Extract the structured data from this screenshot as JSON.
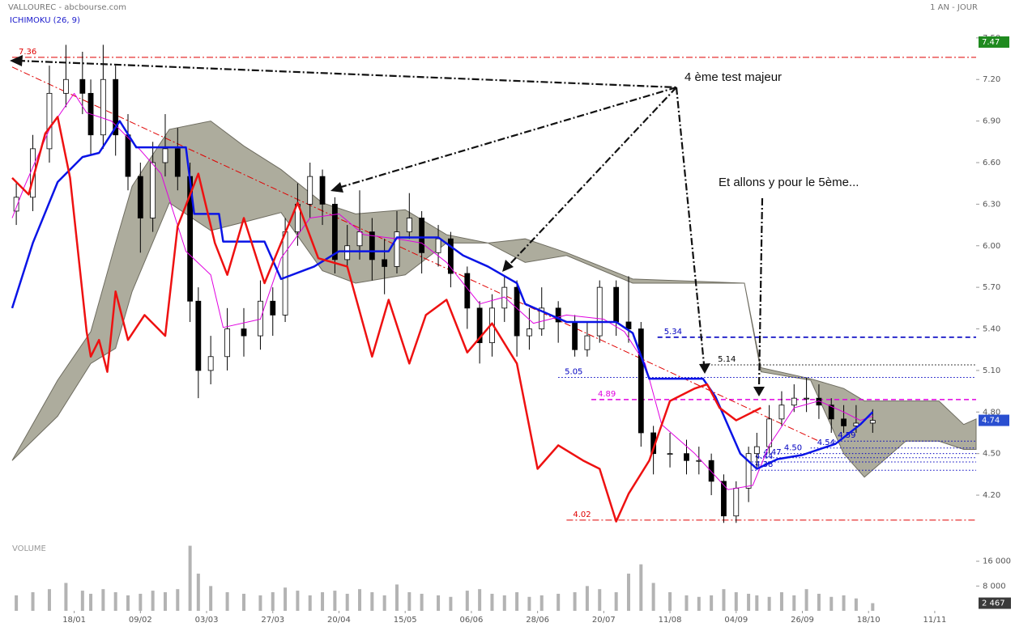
{
  "chart_data": [
    {
      "type": "candlestick",
      "title": "VALLOUREC - abcbourse.com",
      "subtitle": "1 AN - JOUR",
      "indicator": "ICHIMOKU (26, 9)",
      "annotations": [
        "4 ème test majeur",
        "Et allons y pour le 5ème..."
      ],
      "xlim": [
        -15,
        218
      ],
      "ylim": [
        3.92,
        7.54
      ],
      "yticks": [
        {
          "value": 7.5,
          "label": "7.50"
        },
        {
          "value": 7.2,
          "label": "7.20"
        },
        {
          "value": 6.9,
          "label": "6.90"
        },
        {
          "value": 6.6,
          "label": "6.60"
        },
        {
          "value": 6.3,
          "label": "6.30"
        },
        {
          "value": 6.0,
          "label": "6.00"
        },
        {
          "value": 5.7,
          "label": "5.70"
        },
        {
          "value": 5.4,
          "label": "5.40"
        },
        {
          "value": 5.1,
          "label": "5.10"
        },
        {
          "value": 4.8,
          "label": "4.80"
        },
        {
          "value": 4.5,
          "label": "4.50"
        },
        {
          "value": 4.2,
          "label": "4.20"
        }
      ],
      "x": [
        -14,
        -10,
        -6,
        -2,
        2,
        4,
        7,
        10,
        13,
        16,
        19,
        22,
        25,
        28,
        30,
        33,
        37,
        41,
        45,
        48,
        51,
        54,
        57,
        60,
        63,
        66,
        69,
        72,
        75,
        78,
        81,
        84,
        88,
        91,
        95,
        98,
        101,
        104,
        107,
        110,
        113,
        117,
        121,
        124,
        127,
        131,
        134,
        137,
        140,
        144,
        148,
        151,
        154,
        157,
        160,
        163,
        165,
        168,
        171,
        174,
        177,
        180,
        183,
        186,
        189,
        193
      ],
      "open": [
        6.25,
        6.35,
        6.7,
        7.1,
        7.2,
        7.1,
        6.8,
        7.2,
        6.8,
        6.5,
        6.2,
        6.6,
        6.7,
        6.5,
        5.6,
        5.1,
        5.2,
        5.4,
        5.35,
        5.6,
        5.5,
        6.1,
        6.3,
        6.5,
        6.3,
        5.9,
        6.0,
        6.1,
        5.9,
        5.85,
        6.1,
        6.2,
        5.95,
        6.05,
        5.8,
        5.55,
        5.3,
        5.55,
        5.7,
        5.35,
        5.4,
        5.55,
        5.45,
        5.25,
        5.35,
        5.7,
        5.45,
        5.4,
        4.65,
        4.5,
        4.5,
        4.45,
        4.45,
        4.3,
        4.05,
        4.25,
        4.5,
        4.55,
        4.75,
        4.85,
        4.9,
        4.9,
        4.85,
        4.75,
        4.7,
        4.72
      ],
      "high": [
        6.45,
        6.8,
        7.3,
        7.45,
        7.4,
        7.2,
        7.45,
        7.3,
        6.95,
        6.6,
        6.75,
        6.95,
        6.85,
        6.6,
        5.7,
        5.35,
        5.55,
        5.55,
        5.75,
        5.7,
        6.2,
        6.45,
        6.6,
        6.55,
        6.35,
        6.15,
        6.4,
        6.2,
        6.05,
        6.25,
        6.38,
        6.25,
        6.15,
        6.1,
        5.85,
        5.6,
        5.65,
        5.78,
        5.75,
        5.55,
        5.7,
        5.6,
        5.5,
        5.45,
        5.75,
        5.75,
        5.78,
        5.45,
        4.7,
        4.65,
        4.6,
        4.55,
        4.5,
        4.35,
        4.3,
        4.55,
        4.65,
        4.85,
        4.95,
        5.0,
        5.05,
        5.0,
        4.9,
        4.85,
        4.85,
        4.82
      ],
      "low": [
        6.15,
        6.25,
        6.6,
        7.0,
        6.95,
        6.65,
        6.7,
        6.65,
        6.4,
        5.95,
        6.1,
        6.5,
        6.4,
        5.45,
        4.9,
        5.0,
        5.1,
        5.2,
        5.25,
        5.35,
        5.45,
        6.0,
        6.2,
        6.15,
        5.8,
        5.85,
        5.9,
        5.75,
        5.65,
        5.8,
        6.05,
        5.8,
        5.85,
        5.7,
        5.4,
        5.15,
        5.2,
        5.45,
        5.2,
        5.25,
        5.35,
        5.3,
        5.2,
        5.2,
        5.3,
        5.35,
        5.3,
        4.55,
        4.35,
        4.4,
        4.35,
        4.35,
        4.2,
        4.0,
        4.0,
        4.15,
        4.4,
        4.5,
        4.7,
        4.8,
        4.8,
        4.75,
        4.65,
        4.65,
        4.65,
        4.65
      ],
      "close": [
        6.35,
        6.7,
        7.1,
        7.2,
        7.1,
        6.8,
        7.2,
        6.8,
        6.5,
        6.2,
        6.6,
        6.7,
        6.5,
        5.6,
        5.1,
        5.2,
        5.4,
        5.35,
        5.6,
        5.5,
        6.1,
        6.3,
        6.5,
        6.3,
        5.9,
        6.0,
        6.1,
        5.9,
        5.85,
        6.1,
        6.2,
        5.95,
        6.05,
        5.8,
        5.55,
        5.3,
        5.55,
        5.7,
        5.35,
        5.4,
        5.55,
        5.45,
        5.25,
        5.35,
        5.7,
        5.45,
        5.4,
        4.65,
        4.5,
        4.5,
        4.45,
        4.45,
        4.3,
        4.05,
        4.25,
        4.5,
        4.55,
        4.75,
        4.85,
        4.9,
        4.9,
        4.85,
        4.75,
        4.7,
        4.72,
        4.74
      ],
      "up_color": "#ffffff",
      "down_color": "#000000",
      "cloud": {
        "color": "#9f9d8c",
        "x": [
          -15,
          -4,
          4,
          10,
          14,
          23,
          33,
          41,
          50,
          60,
          68,
          80,
          90,
          100,
          109,
          119,
          135,
          162,
          166,
          178,
          186,
          191,
          201,
          209,
          215,
          218
        ],
        "upper": [
          4.45,
          5.03,
          5.38,
          6.02,
          6.43,
          6.84,
          6.9,
          6.72,
          6.55,
          6.31,
          6.23,
          6.26,
          6.08,
          6.02,
          6.05,
          5.95,
          5.76,
          5.73,
          5.12,
          5.04,
          4.97,
          4.88,
          4.88,
          4.88,
          4.71,
          4.75
        ],
        "lower": [
          4.45,
          4.77,
          5.15,
          5.26,
          5.67,
          6.31,
          6.11,
          6.17,
          6.24,
          5.82,
          5.73,
          5.79,
          6.02,
          6.02,
          5.88,
          5.93,
          5.73,
          5.73,
          5.09,
          5.03,
          4.5,
          4.33,
          4.59,
          4.59,
          4.53,
          4.53
        ]
      },
      "lines": [
        {
          "color": "#e000e0",
          "width": 1,
          "x": [
            -15,
            -12,
            -6,
            0,
            3,
            9,
            16,
            21,
            27,
            33,
            36,
            45,
            50,
            57,
            64,
            70,
            78,
            84,
            90,
            98,
            104,
            111,
            119,
            128,
            133,
            138,
            142,
            150,
            158,
            164,
            168,
            174,
            180,
            186,
            190,
            193
          ],
          "values": [
            6.2,
            6.43,
            6.84,
            7.1,
            6.96,
            6.9,
            6.69,
            6.52,
            5.96,
            5.79,
            5.41,
            5.47,
            5.91,
            6.2,
            6.23,
            6.08,
            6.05,
            6.02,
            5.88,
            5.58,
            5.63,
            5.44,
            5.5,
            5.47,
            5.38,
            5.15,
            4.71,
            4.5,
            4.24,
            4.27,
            4.56,
            4.83,
            4.88,
            4.8,
            4.74,
            4.77
          ]
        },
        {
          "color": "#0a14e6",
          "width": 2.5,
          "x": [
            -15,
            -10,
            -4,
            2,
            6,
            11,
            15,
            27,
            29,
            35,
            36,
            46,
            50,
            58,
            64,
            76,
            78,
            88,
            94,
            100,
            107,
            109,
            119,
            131,
            135,
            139,
            152,
            155,
            161,
            165,
            170,
            176,
            184,
            190,
            193
          ],
          "values": [
            5.55,
            6.02,
            6.46,
            6.64,
            6.67,
            6.9,
            6.71,
            6.71,
            6.23,
            6.23,
            6.03,
            6.03,
            5.76,
            5.85,
            5.96,
            5.96,
            6.06,
            6.06,
            5.93,
            5.85,
            5.73,
            5.58,
            5.45,
            5.45,
            5.37,
            5.04,
            5.04,
            4.91,
            4.5,
            4.39,
            4.46,
            4.49,
            4.57,
            4.71,
            4.8
          ]
        },
        {
          "color": "#ee1111",
          "width": 2.5,
          "x": [
            -15,
            -11,
            -7,
            -4,
            -1,
            3,
            4,
            6,
            8,
            10,
            13,
            17,
            22,
            25,
            30,
            34,
            37,
            41,
            46,
            50,
            54,
            59,
            66,
            72,
            76,
            81,
            85,
            90,
            95,
            101,
            107,
            112,
            117,
            123,
            127,
            131,
            134,
            139,
            144,
            150,
            153,
            156,
            160,
            166
          ],
          "values": [
            6.49,
            6.37,
            6.81,
            6.93,
            6.49,
            5.38,
            5.2,
            5.32,
            5.09,
            5.67,
            5.32,
            5.5,
            5.35,
            6.14,
            6.52,
            6.02,
            5.79,
            6.2,
            5.73,
            6.02,
            6.31,
            5.91,
            5.85,
            5.2,
            5.61,
            5.15,
            5.5,
            5.61,
            5.23,
            5.44,
            5.15,
            4.39,
            4.56,
            4.45,
            4.39,
            4.01,
            4.21,
            4.45,
            4.88,
            4.97,
            5.0,
            4.83,
            4.74,
            4.83
          ]
        }
      ],
      "trend": {
        "color": "#e00000",
        "x": [
          -15,
          180
        ],
        "values": [
          7.29,
          4.59
        ]
      },
      "levels": [
        {
          "value": 7.36,
          "color": "#e00000",
          "style": "dashdot",
          "start": -15
        },
        {
          "value": 5.34,
          "color": "#0000c0",
          "style": "dashed",
          "start": 141
        },
        {
          "value": 5.14,
          "color": "#000000",
          "style": "dotted",
          "start": 154
        },
        {
          "value": 5.05,
          "color": "#0000c0",
          "style": "dotted",
          "start": 117
        },
        {
          "value": 4.89,
          "color": "#e000e0",
          "style": "dashed",
          "start": 125
        },
        {
          "value": 4.02,
          "color": "#e00000",
          "style": "dashdot",
          "start": 119
        },
        {
          "value": 4.59,
          "color": "#0000c0",
          "style": "dotted",
          "start": 183
        },
        {
          "value": 4.54,
          "color": "#0000c0",
          "style": "dotted",
          "start": 178
        },
        {
          "value": 4.5,
          "label": "4.50",
          "color": "#0000c0",
          "style": "dotted",
          "start": 170
        },
        {
          "value": 4.47,
          "color": "#0000c0",
          "style": "dotted",
          "start": 165
        },
        {
          "value": 4.44,
          "color": "#0000c0",
          "style": "dotted",
          "start": 163
        },
        {
          "value": 4.38,
          "color": "#0000c0",
          "style": "dotted",
          "start": 163
        }
      ],
      "price_tags": [
        {
          "value": 7.47,
          "color": "#1f8a1f"
        },
        {
          "value": 4.74,
          "color": "#2a4fd0"
        }
      ]
    },
    {
      "type": "bar",
      "ylabel": "VOLUME",
      "color": "#b3b3b3",
      "xlim": [
        -15,
        218
      ],
      "ylim": [
        0,
        23500
      ],
      "yticks": [
        {
          "value": 16000,
          "label": "16 000"
        },
        {
          "value": 8000,
          "label": "8 000"
        }
      ],
      "xticks": [
        {
          "value": 0,
          "label": "18/01"
        },
        {
          "value": 16,
          "label": "09/02"
        },
        {
          "value": 32,
          "label": "03/03"
        },
        {
          "value": 48,
          "label": "27/03"
        },
        {
          "value": 64,
          "label": "20/04"
        },
        {
          "value": 80,
          "label": "15/05"
        },
        {
          "value": 96,
          "label": "06/06"
        },
        {
          "value": 112,
          "label": "28/06"
        },
        {
          "value": 128,
          "label": "20/07"
        },
        {
          "value": 144,
          "label": "11/08"
        },
        {
          "value": 160,
          "label": "04/09"
        },
        {
          "value": 176,
          "label": "26/09"
        },
        {
          "value": 192,
          "label": "18/10"
        },
        {
          "value": 208,
          "label": "11/11"
        }
      ],
      "x": [
        -14,
        -10,
        -6,
        -2,
        2,
        4,
        7,
        10,
        13,
        16,
        19,
        22,
        25,
        28,
        30,
        33,
        37,
        41,
        45,
        48,
        51,
        54,
        57,
        60,
        63,
        66,
        69,
        72,
        75,
        78,
        81,
        84,
        88,
        91,
        95,
        98,
        101,
        104,
        107,
        110,
        113,
        117,
        121,
        124,
        127,
        131,
        134,
        137,
        140,
        144,
        148,
        151,
        154,
        157,
        160,
        163,
        165,
        168,
        171,
        174,
        177,
        180,
        183,
        186,
        189,
        193
      ],
      "values": [
        5000,
        6000,
        7000,
        9000,
        6500,
        5500,
        7000,
        6000,
        5000,
        5500,
        6500,
        6000,
        7000,
        21000,
        12000,
        8000,
        6000,
        5500,
        5000,
        6000,
        7500,
        6500,
        5000,
        6000,
        6500,
        5500,
        7000,
        6000,
        5000,
        8500,
        6000,
        5500,
        5000,
        4500,
        6500,
        7000,
        5500,
        5000,
        6000,
        4500,
        5000,
        5500,
        6000,
        8000,
        7000,
        6000,
        12000,
        15000,
        9000,
        6000,
        5000,
        4500,
        5000,
        7000,
        6000,
        5500,
        5000,
        4500,
        6000,
        5000,
        7000,
        5500,
        4500,
        5000,
        4000,
        2467
      ],
      "last_tag": {
        "value": 2467,
        "label": "2 467",
        "color": "#3a3a3a"
      }
    }
  ]
}
